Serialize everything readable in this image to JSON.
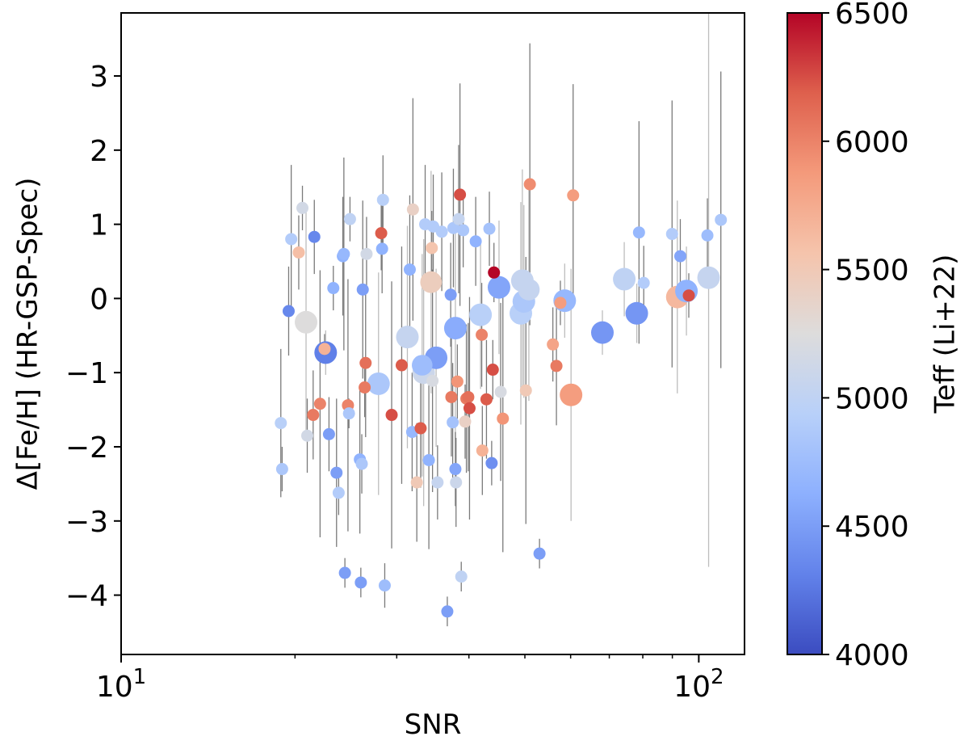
{
  "chart_data": {
    "type": "scatter",
    "title": "",
    "xlabel": "SNR",
    "ylabel": "Δ[Fe/H] (HR-GSP-Spec)",
    "xscale": "log",
    "xlim": [
      10,
      120
    ],
    "ylim": [
      -4.8,
      3.85
    ],
    "x_ticks": [
      {
        "value": 10,
        "base": "10",
        "exp": "1"
      },
      {
        "value": 100,
        "base": "10",
        "exp": "2"
      }
    ],
    "y_ticks": [
      {
        "value": -4,
        "label": "−4"
      },
      {
        "value": -3,
        "label": "−3"
      },
      {
        "value": -2,
        "label": "−2"
      },
      {
        "value": -1,
        "label": "−1"
      },
      {
        "value": 0,
        "label": "0"
      },
      {
        "value": 1,
        "label": "1"
      },
      {
        "value": 2,
        "label": "2"
      },
      {
        "value": 3,
        "label": "3"
      }
    ],
    "grid": false,
    "colorbar": {
      "label": "Teff (Li+22)",
      "range": [
        4000,
        6500
      ],
      "ticks": [
        {
          "value": 4000,
          "label": "4000"
        },
        {
          "value": 4500,
          "label": "4500"
        },
        {
          "value": 5000,
          "label": "5000"
        },
        {
          "value": 5500,
          "label": "5500"
        },
        {
          "value": 6000,
          "label": "6000"
        },
        {
          "value": 6500,
          "label": "6500"
        }
      ],
      "colormap": "coolwarm",
      "stops": [
        "#3b4cc0",
        "#6282ea",
        "#8db0fe",
        "#b8d0f9",
        "#dddcdc",
        "#f5c4ac",
        "#f49a7b",
        "#de604d",
        "#b40426"
      ]
    },
    "points": [
      {
        "snr": 18.9,
        "dfeh": -1.68,
        "err": [
          1.0,
          1.0
        ],
        "teff": 4950,
        "size": 0.45
      },
      {
        "snr": 19.0,
        "dfeh": -2.3,
        "err": [
          0.3,
          0.3
        ],
        "teff": 4850,
        "size": 0.45
      },
      {
        "snr": 19.5,
        "dfeh": -0.17,
        "err": [
          0.6,
          0.6
        ],
        "teff": 4350,
        "size": 0.45
      },
      {
        "snr": 19.7,
        "dfeh": 0.8,
        "err": [
          1.0,
          1.0
        ],
        "teff": 4900,
        "size": 0.45
      },
      {
        "snr": 20.3,
        "dfeh": 0.62,
        "err": [
          0.5,
          0.5
        ],
        "teff": 5600,
        "size": 0.45
      },
      {
        "snr": 20.6,
        "dfeh": 1.22,
        "err": [
          0.3,
          0.3
        ],
        "teff": 5150,
        "size": 0.5
      },
      {
        "snr": 20.9,
        "dfeh": -0.32,
        "err": [
          1.5,
          1.5
        ],
        "teff": 5250,
        "size": 1.0
      },
      {
        "snr": 21.0,
        "dfeh": -1.85,
        "err": [
          0.5,
          0.5
        ],
        "teff": 5150,
        "size": 0.45
      },
      {
        "snr": 21.5,
        "dfeh": -1.57,
        "err": [
          0.6,
          0.6
        ],
        "teff": 6050,
        "size": 0.45
      },
      {
        "snr": 21.6,
        "dfeh": 0.83,
        "err": [
          0.5,
          0.5
        ],
        "teff": 4350,
        "size": 0.45
      },
      {
        "snr": 22.1,
        "dfeh": -1.42,
        "err": [
          1.8,
          1.8
        ],
        "teff": 6000,
        "size": 0.45
      },
      {
        "snr": 22.5,
        "dfeh": -0.68,
        "err": [
          0.2,
          0.2
        ],
        "teff": 5700,
        "size": 0.45
      },
      {
        "snr": 22.6,
        "dfeh": -0.73,
        "err": [
          0.3,
          0.3
        ],
        "teff": 4300,
        "size": 1.0
      },
      {
        "snr": 22.9,
        "dfeh": -1.83,
        "err": [
          0.5,
          0.5
        ],
        "teff": 4500,
        "size": 0.45
      },
      {
        "snr": 23.3,
        "dfeh": 0.14,
        "err": [
          0.3,
          0.3
        ],
        "teff": 4650,
        "size": 0.45
      },
      {
        "snr": 23.6,
        "dfeh": -2.35,
        "err": [
          1.0,
          1.0
        ],
        "teff": 4500,
        "size": 0.45
      },
      {
        "snr": 23.8,
        "dfeh": -2.62,
        "err": [
          0.3,
          0.3
        ],
        "teff": 4900,
        "size": 0.45
      },
      {
        "snr": 24.2,
        "dfeh": 0.57,
        "err": [
          0.8,
          0.8
        ],
        "teff": 4650,
        "size": 0.45
      },
      {
        "snr": 24.3,
        "dfeh": 0.6,
        "err": [
          1.3,
          1.3
        ],
        "teff": 4700,
        "size": 0.45
      },
      {
        "snr": 24.4,
        "dfeh": -3.7,
        "err": [
          0.2,
          0.2
        ],
        "teff": 4500,
        "size": 0.45
      },
      {
        "snr": 24.7,
        "dfeh": -1.44,
        "err": [
          1.7,
          1.7
        ],
        "teff": 6000,
        "size": 0.45
      },
      {
        "snr": 24.9,
        "dfeh": 1.07,
        "err": [
          0.3,
          0.3
        ],
        "teff": 5000,
        "size": 0.45
      },
      {
        "snr": 24.8,
        "dfeh": -1.55,
        "err": [
          0.2,
          0.2
        ],
        "teff": 4850,
        "size": 0.45
      },
      {
        "snr": 25.9,
        "dfeh": -2.17,
        "err": [
          1.0,
          1.0
        ],
        "teff": 4650,
        "size": 0.45
      },
      {
        "snr": 26.1,
        "dfeh": -2.23,
        "err": [
          0.4,
          0.4
        ],
        "teff": 4850,
        "size": 0.45
      },
      {
        "snr": 26.0,
        "dfeh": -3.83,
        "err": [
          0.2,
          0.2
        ],
        "teff": 4500,
        "size": 0.45
      },
      {
        "snr": 26.2,
        "dfeh": 0.12,
        "err": [
          1.2,
          1.2
        ],
        "teff": 4500,
        "size": 0.45
      },
      {
        "snr": 26.5,
        "dfeh": -0.87,
        "err": [
          1.0,
          1.0
        ],
        "teff": 6100,
        "size": 0.45
      },
      {
        "snr": 26.4,
        "dfeh": -1.2,
        "err": [
          0.4,
          0.4
        ],
        "teff": 6050,
        "size": 0.45
      },
      {
        "snr": 26.6,
        "dfeh": 0.6,
        "err": [
          0.5,
          0.5
        ],
        "teff": 5150,
        "size": 0.45
      },
      {
        "snr": 27.9,
        "dfeh": -1.15,
        "err": [
          1.5,
          1.5
        ],
        "teff": 4850,
        "size": 1.0
      },
      {
        "snr": 28.2,
        "dfeh": 0.88,
        "err": [
          0.5,
          0.5
        ],
        "teff": 6200,
        "size": 0.45
      },
      {
        "snr": 28.3,
        "dfeh": 0.67,
        "err": [
          0.6,
          0.6
        ],
        "teff": 4650,
        "size": 0.45
      },
      {
        "snr": 28.4,
        "dfeh": 1.33,
        "err": [
          0.6,
          0.6
        ],
        "teff": 4950,
        "size": 0.45
      },
      {
        "snr": 28.6,
        "dfeh": -3.87,
        "err": [
          0.3,
          0.3
        ],
        "teff": 4750,
        "size": 0.45
      },
      {
        "snr": 29.4,
        "dfeh": -1.57,
        "err": [
          1.8,
          1.8
        ],
        "teff": 6250,
        "size": 0.45
      },
      {
        "snr": 30.6,
        "dfeh": -0.9,
        "err": [
          1.6,
          1.6
        ],
        "teff": 6200,
        "size": 0.45
      },
      {
        "snr": 31.3,
        "dfeh": -0.52,
        "err": [
          1.5,
          1.5
        ],
        "teff": 5050,
        "size": 1.0
      },
      {
        "snr": 31.6,
        "dfeh": 0.39,
        "err": [
          1.0,
          1.0
        ],
        "teff": 4650,
        "size": 0.45
      },
      {
        "snr": 31.9,
        "dfeh": -1.8,
        "err": [
          0.8,
          0.8
        ],
        "teff": 4700,
        "size": 0.45
      },
      {
        "snr": 32.0,
        "dfeh": 1.2,
        "err": [
          1.5,
          1.5
        ],
        "teff": 5400,
        "size": 0.45
      },
      {
        "snr": 32.5,
        "dfeh": -2.48,
        "err": [
          0.8,
          0.8
        ],
        "teff": 5500,
        "size": 0.45
      },
      {
        "snr": 33.0,
        "dfeh": -1.75,
        "err": [
          0.8,
          0.8
        ],
        "teff": 6200,
        "size": 0.45
      },
      {
        "snr": 33.2,
        "dfeh": -0.9,
        "err": [
          1.5,
          1.5
        ],
        "teff": 4750,
        "size": 0.8
      },
      {
        "snr": 33.4,
        "dfeh": -1.0,
        "err": [
          1.8,
          1.8
        ],
        "teff": 5100,
        "size": 1.0
      },
      {
        "snr": 33.6,
        "dfeh": 1.0,
        "err": [
          0.8,
          0.8
        ],
        "teff": 4900,
        "size": 0.45
      },
      {
        "snr": 34.1,
        "dfeh": -2.18,
        "err": [
          1.2,
          1.2
        ],
        "teff": 4650,
        "size": 0.45
      },
      {
        "snr": 34.4,
        "dfeh": 0.22,
        "err": [
          1.5,
          1.5
        ],
        "teff": 5450,
        "size": 0.9
      },
      {
        "snr": 34.5,
        "dfeh": 0.68,
        "err": [
          0.5,
          0.5
        ],
        "teff": 5550,
        "size": 0.45
      },
      {
        "snr": 34.6,
        "dfeh": -1.11,
        "err": [
          1.5,
          1.5
        ],
        "teff": 5200,
        "size": 0.45
      },
      {
        "snr": 34.7,
        "dfeh": 0.97,
        "err": [
          0.7,
          0.7
        ],
        "teff": 4900,
        "size": 0.45
      },
      {
        "snr": 35.1,
        "dfeh": -0.8,
        "err": [
          1.2,
          1.2
        ],
        "teff": 4500,
        "size": 1.0
      },
      {
        "snr": 35.3,
        "dfeh": -2.48,
        "err": [
          0.5,
          0.5
        ],
        "teff": 5050,
        "size": 0.45
      },
      {
        "snr": 35.9,
        "dfeh": 0.9,
        "err": [
          0.8,
          0.8
        ],
        "teff": 4900,
        "size": 0.45
      },
      {
        "snr": 36.7,
        "dfeh": -4.22,
        "err": [
          0.2,
          0.2
        ],
        "teff": 4500,
        "size": 0.45
      },
      {
        "snr": 37.2,
        "dfeh": 0.05,
        "err": [
          0.7,
          0.7
        ],
        "teff": 4500,
        "size": 0.45
      },
      {
        "snr": 37.3,
        "dfeh": -1.33,
        "err": [
          0.8,
          0.8
        ],
        "teff": 6050,
        "size": 0.45
      },
      {
        "snr": 37.5,
        "dfeh": -1.67,
        "err": [
          0.8,
          0.8
        ],
        "teff": 4800,
        "size": 0.45
      },
      {
        "snr": 37.6,
        "dfeh": 0.95,
        "err": [
          0.8,
          0.8
        ],
        "teff": 4850,
        "size": 0.45
      },
      {
        "snr": 37.9,
        "dfeh": -0.4,
        "err": [
          1.5,
          1.5
        ],
        "teff": 4600,
        "size": 1.0
      },
      {
        "snr": 37.9,
        "dfeh": -2.3,
        "err": [
          0.5,
          0.5
        ],
        "teff": 4550,
        "size": 0.45
      },
      {
        "snr": 38.0,
        "dfeh": -2.48,
        "err": [
          0.6,
          0.6
        ],
        "teff": 5100,
        "size": 0.45
      },
      {
        "snr": 38.2,
        "dfeh": -1.12,
        "err": [
          0.5,
          0.5
        ],
        "teff": 5900,
        "size": 0.45
      },
      {
        "snr": 38.4,
        "dfeh": 1.07,
        "err": [
          1.0,
          1.0
        ],
        "teff": 5050,
        "size": 0.45
      },
      {
        "snr": 38.6,
        "dfeh": 1.4,
        "err": [
          1.5,
          1.5
        ],
        "teff": 6250,
        "size": 0.45
      },
      {
        "snr": 38.8,
        "dfeh": -3.75,
        "err": [
          0.2,
          0.2
        ],
        "teff": 5000,
        "size": 0.45
      },
      {
        "snr": 39.1,
        "dfeh": 0.92,
        "err": [
          0.5,
          0.5
        ],
        "teff": 4850,
        "size": 0.45
      },
      {
        "snr": 39.4,
        "dfeh": -1.66,
        "err": [
          0.5,
          0.5
        ],
        "teff": 5400,
        "size": 0.45
      },
      {
        "snr": 39.6,
        "dfeh": -1.35,
        "err": [
          1.0,
          1.0
        ],
        "teff": 6050,
        "size": 0.45
      },
      {
        "snr": 39.9,
        "dfeh": -1.33,
        "err": [
          1.0,
          1.0
        ],
        "teff": 6100,
        "size": 0.45
      },
      {
        "snr": 40.1,
        "dfeh": -1.48,
        "err": [
          1.5,
          1.5
        ],
        "teff": 6250,
        "size": 0.45
      },
      {
        "snr": 41.1,
        "dfeh": 0.77,
        "err": [
          0.6,
          0.6
        ],
        "teff": 4650,
        "size": 0.45
      },
      {
        "snr": 41.9,
        "dfeh": -0.22,
        "err": [
          1.0,
          1.0
        ],
        "teff": 4950,
        "size": 1.0
      },
      {
        "snr": 42.1,
        "dfeh": -0.49,
        "err": [
          0.7,
          0.7
        ],
        "teff": 6000,
        "size": 0.45
      },
      {
        "snr": 42.2,
        "dfeh": -2.05,
        "err": [
          0.6,
          0.6
        ],
        "teff": 5700,
        "size": 0.45
      },
      {
        "snr": 42.9,
        "dfeh": -1.36,
        "err": [
          0.8,
          0.8
        ],
        "teff": 6200,
        "size": 0.45
      },
      {
        "snr": 43.4,
        "dfeh": 0.94,
        "err": [
          0.5,
          0.5
        ],
        "teff": 4800,
        "size": 0.45
      },
      {
        "snr": 43.8,
        "dfeh": -2.22,
        "err": [
          0.3,
          0.3
        ],
        "teff": 4400,
        "size": 0.45
      },
      {
        "snr": 44.0,
        "dfeh": -0.96,
        "err": [
          0.4,
          0.4
        ],
        "teff": 6250,
        "size": 0.45
      },
      {
        "snr": 44.2,
        "dfeh": 0.35,
        "err": [
          0.4,
          0.4
        ],
        "teff": 6500,
        "size": 0.45
      },
      {
        "snr": 45.1,
        "dfeh": 0.15,
        "err": [
          0.9,
          0.9
        ],
        "teff": 4550,
        "size": 1.0
      },
      {
        "snr": 45.4,
        "dfeh": -1.26,
        "err": [
          1.2,
          1.2
        ],
        "teff": 5200,
        "size": 0.45
      },
      {
        "snr": 45.8,
        "dfeh": -1.62,
        "err": [
          1.8,
          1.8
        ],
        "teff": 5900,
        "size": 0.45
      },
      {
        "snr": 49.2,
        "dfeh": -0.2,
        "err": [
          1.5,
          1.5
        ],
        "teff": 4950,
        "size": 1.0
      },
      {
        "snr": 49.5,
        "dfeh": 0.24,
        "err": [
          1.5,
          1.5
        ],
        "teff": 5050,
        "size": 1.0
      },
      {
        "snr": 49.8,
        "dfeh": -0.04,
        "err": [
          1.3,
          1.3
        ],
        "teff": 4850,
        "size": 1.0
      },
      {
        "snr": 50.2,
        "dfeh": -1.24,
        "err": [
          1.8,
          1.8
        ],
        "teff": 5500,
        "size": 0.45
      },
      {
        "snr": 50.8,
        "dfeh": 0.12,
        "err": [
          1.5,
          1.5
        ],
        "teff": 5050,
        "size": 0.9
      },
      {
        "snr": 51.0,
        "dfeh": 1.54,
        "err": [
          1.9,
          1.9
        ],
        "teff": 5950,
        "size": 0.45
      },
      {
        "snr": 53.0,
        "dfeh": -3.44,
        "err": [
          0.2,
          0.2
        ],
        "teff": 4500,
        "size": 0.45
      },
      {
        "snr": 55.9,
        "dfeh": -0.62,
        "err": [
          0.5,
          0.5
        ],
        "teff": 5800,
        "size": 0.45
      },
      {
        "snr": 56.7,
        "dfeh": -0.91,
        "err": [
          0.8,
          0.8
        ],
        "teff": 6050,
        "size": 0.45
      },
      {
        "snr": 57.6,
        "dfeh": -0.06,
        "err": [
          0.3,
          0.3
        ],
        "teff": 5850,
        "size": 0.45
      },
      {
        "snr": 58.6,
        "dfeh": -0.03,
        "err": [
          0.5,
          0.5
        ],
        "teff": 4700,
        "size": 1.0
      },
      {
        "snr": 60.1,
        "dfeh": -1.3,
        "err": [
          1.7,
          1.7
        ],
        "teff": 5850,
        "size": 1.0
      },
      {
        "snr": 60.6,
        "dfeh": 1.39,
        "err": [
          1.5,
          1.5
        ],
        "teff": 5850,
        "size": 0.45
      },
      {
        "snr": 68.1,
        "dfeh": -0.46,
        "err": [
          0.3,
          0.3
        ],
        "teff": 4450,
        "size": 1.0
      },
      {
        "snr": 74.3,
        "dfeh": 0.26,
        "err": [
          0.5,
          0.5
        ],
        "teff": 5000,
        "size": 1.0
      },
      {
        "snr": 78.1,
        "dfeh": -0.2,
        "err": [
          0.4,
          0.4
        ],
        "teff": 4450,
        "size": 1.0
      },
      {
        "snr": 78.8,
        "dfeh": 0.89,
        "err": [
          1.5,
          1.5
        ],
        "teff": 4700,
        "size": 0.45
      },
      {
        "snr": 80.3,
        "dfeh": 0.21,
        "err": [
          0.5,
          0.5
        ],
        "teff": 4900,
        "size": 0.45
      },
      {
        "snr": 89.9,
        "dfeh": 0.87,
        "err": [
          1.8,
          1.8
        ],
        "teff": 4900,
        "size": 0.45
      },
      {
        "snr": 91.8,
        "dfeh": 0.02,
        "err": [
          1.3,
          1.3
        ],
        "teff": 5650,
        "size": 1.0
      },
      {
        "snr": 92.9,
        "dfeh": 0.57,
        "err": [
          0.5,
          0.5
        ],
        "teff": 4550,
        "size": 0.45
      },
      {
        "snr": 95.2,
        "dfeh": 0.1,
        "err": [
          0.6,
          0.6
        ],
        "teff": 4650,
        "size": 1.0
      },
      {
        "snr": 96.1,
        "dfeh": 0.04,
        "err": [
          0.3,
          0.3
        ],
        "teff": 6250,
        "size": 0.45
      },
      {
        "snr": 103.5,
        "dfeh": 0.85,
        "err": [
          0.5,
          0.5
        ],
        "teff": 4750,
        "size": 0.45
      },
      {
        "snr": 104.0,
        "dfeh": 0.28,
        "err": [
          3.9,
          3.9
        ],
        "teff": 5050,
        "size": 1.0
      },
      {
        "snr": 109.2,
        "dfeh": 1.06,
        "err": [
          2.0,
          2.0
        ],
        "teff": 4850,
        "size": 0.45
      }
    ]
  }
}
